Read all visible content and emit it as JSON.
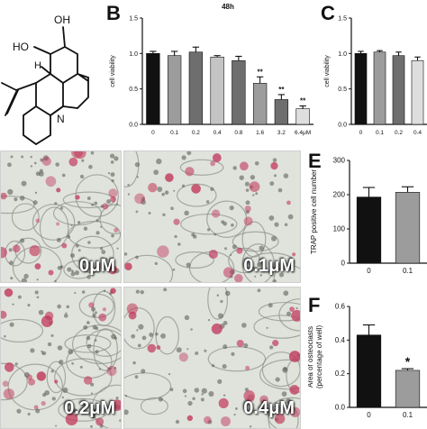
{
  "panels": {
    "B": {
      "letter": "B",
      "title": "48h"
    },
    "C": {
      "letter": "C"
    },
    "E": {
      "letter": "E"
    },
    "F": {
      "letter": "F"
    }
  },
  "structure": {
    "hydroxyl_top": "OH",
    "hydroxyl_left": "HO",
    "hydrogen": "H",
    "nitrogen": "N"
  },
  "micrographs": [
    {
      "label": "0μM"
    },
    {
      "label": "0.1μM"
    },
    {
      "label": "0.2μM"
    },
    {
      "label": "0.4μM"
    }
  ],
  "colors": {
    "black_bar": "#111111",
    "dark_grey_bar": "#6e6e6e",
    "grey_bar": "#9c9c9c",
    "light_grey_bar": "#c4c4c4",
    "lightest_bar": "#dedede",
    "stain_pink": "#c23a5c"
  },
  "chart_data": [
    {
      "id": "B",
      "type": "bar",
      "title": "48h",
      "ylabel": "cell viability",
      "xlabel": "",
      "ylim": [
        0,
        1.5
      ],
      "yticks": [
        "0.0",
        "0.5",
        "1.0",
        "1.5"
      ],
      "categories": [
        "0",
        "0.1",
        "0.2",
        "0.4",
        "0.8",
        "1.6",
        "3.2",
        "6.4μM"
      ],
      "values": [
        1.0,
        0.97,
        1.02,
        0.95,
        0.9,
        0.58,
        0.35,
        0.22
      ],
      "errors": [
        0.03,
        0.06,
        0.07,
        0.02,
        0.06,
        0.09,
        0.07,
        0.04
      ],
      "significance": [
        "",
        "",
        "",
        "",
        "",
        "**",
        "**",
        "**"
      ],
      "colors": [
        "#111111",
        "#9c9c9c",
        "#6e6e6e",
        "#c4c4c4",
        "#6e6e6e",
        "#9c9c9c",
        "#6e6e6e",
        "#dedede"
      ]
    },
    {
      "id": "C",
      "type": "bar",
      "ylabel": "cell viability",
      "xlabel": "",
      "ylim": [
        0,
        1.5
      ],
      "yticks": [
        "0.0",
        "0.5",
        "1.0",
        "1.5"
      ],
      "categories": [
        "0",
        "0.1",
        "0.2",
        "0.4"
      ],
      "values": [
        1.0,
        1.02,
        0.97,
        0.9
      ],
      "errors": [
        0.03,
        0.02,
        0.05,
        0.05
      ],
      "significance": [
        "",
        "",
        "",
        ""
      ],
      "colors": [
        "#111111",
        "#9c9c9c",
        "#6e6e6e",
        "#dedede"
      ]
    },
    {
      "id": "E",
      "type": "bar",
      "ylabel": "TRAP positive cell number",
      "xlabel": "",
      "ylim": [
        0,
        300
      ],
      "yticks": [
        "0",
        "100",
        "200",
        "300"
      ],
      "categories": [
        "0",
        "0.1"
      ],
      "values": [
        193,
        207
      ],
      "errors": [
        28,
        16
      ],
      "significance": [
        "",
        ""
      ],
      "colors": [
        "#111111",
        "#9c9c9c"
      ]
    },
    {
      "id": "F",
      "type": "bar",
      "ylabel": "Area of osteoclasts (percentage of well)",
      "xlabel": "",
      "ylim": [
        0,
        0.6
      ],
      "yticks": [
        "0.0",
        "0.2",
        "0.4",
        "0.6"
      ],
      "categories": [
        "0",
        "0.1"
      ],
      "values": [
        0.43,
        0.22
      ],
      "errors": [
        0.06,
        0.01
      ],
      "significance": [
        "",
        "*"
      ],
      "colors": [
        "#111111",
        "#9c9c9c"
      ]
    }
  ]
}
